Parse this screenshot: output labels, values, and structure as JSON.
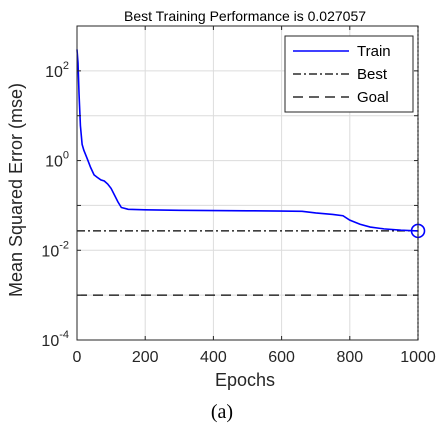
{
  "chart_data": {
    "type": "line",
    "title": "Best Training Performance is 0.027057",
    "xlabel": "Epochs",
    "ylabel": "Mean Squared Error  (mse)",
    "caption": "(a)",
    "x_scale": "linear",
    "y_scale": "log",
    "xlim": [
      0,
      1000
    ],
    "ylim": [
      0.0001,
      1000
    ],
    "xticks": [
      0,
      200,
      400,
      600,
      800,
      1000
    ],
    "yticks": [
      {
        "base": "10",
        "exp": "-4",
        "value": 0.0001
      },
      {
        "base": "10",
        "exp": "-2",
        "value": 0.01
      },
      {
        "base": "10",
        "exp": "0",
        "value": 1
      },
      {
        "base": "10",
        "exp": "2",
        "value": 100
      }
    ],
    "grid": true,
    "legend_position": "top-right",
    "best": {
      "epoch": 1000,
      "value": 0.027057
    },
    "series": [
      {
        "name": "Train",
        "color": "#0000ff",
        "style": "solid",
        "points": [
          [
            0,
            300
          ],
          [
            3,
            150
          ],
          [
            6,
            30
          ],
          [
            10,
            6
          ],
          [
            15,
            2.3
          ],
          [
            20,
            1.7
          ],
          [
            30,
            1.1
          ],
          [
            40,
            0.7
          ],
          [
            50,
            0.48
          ],
          [
            60,
            0.42
          ],
          [
            70,
            0.37
          ],
          [
            80,
            0.35
          ],
          [
            90,
            0.3
          ],
          [
            100,
            0.24
          ],
          [
            110,
            0.17
          ],
          [
            120,
            0.12
          ],
          [
            130,
            0.09
          ],
          [
            150,
            0.082
          ],
          [
            200,
            0.08
          ],
          [
            300,
            0.078
          ],
          [
            400,
            0.077
          ],
          [
            500,
            0.076
          ],
          [
            600,
            0.075
          ],
          [
            660,
            0.074
          ],
          [
            700,
            0.068
          ],
          [
            750,
            0.063
          ],
          [
            780,
            0.059
          ],
          [
            800,
            0.047
          ],
          [
            830,
            0.038
          ],
          [
            860,
            0.033
          ],
          [
            900,
            0.03
          ],
          [
            950,
            0.028
          ],
          [
            1000,
            0.027057
          ]
        ]
      },
      {
        "name": "Best",
        "color": "#000000",
        "style": "dashdot",
        "value": 0.027057
      },
      {
        "name": "Goal",
        "color": "#000000",
        "style": "dashed",
        "value": 0.001
      }
    ]
  },
  "colors": {
    "train": "#0000ff",
    "axis": "#262626",
    "grid": "#dcdcdc",
    "best": "#000000",
    "goal": "#000000",
    "background": "#ffffff"
  }
}
